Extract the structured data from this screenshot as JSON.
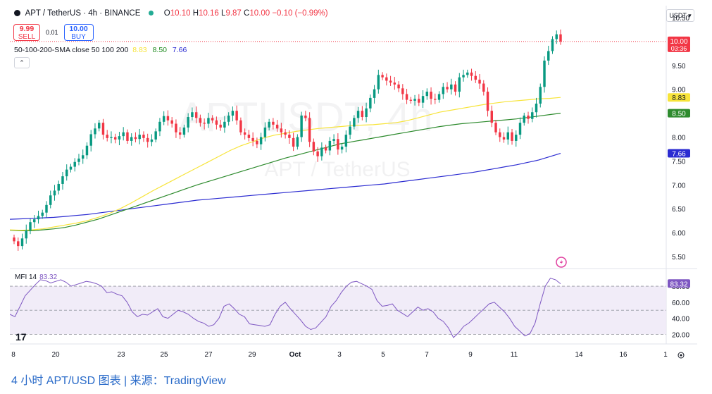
{
  "header": {
    "symbol": "APT / TetherUS · 4h · BINANCE",
    "ohlc": [
      {
        "label": "O",
        "value": "10.10"
      },
      {
        "label": "H",
        "value": "10.16"
      },
      {
        "label": "L",
        "value": "9.87"
      },
      {
        "label": "C",
        "value": "10.00"
      }
    ],
    "change": "−0.10 (−0.99%)",
    "sell_price": "9.99",
    "sell_label": "SELL",
    "spread": "0.01",
    "buy_price": "10.00",
    "buy_label": "BUY",
    "sma_label": "50-100-200-SMA close 50 100 200",
    "sma_values": [
      "8.83",
      "8.50",
      "7.66"
    ],
    "collapse_icon": "chevron-up-icon",
    "currency": "USDT ▾"
  },
  "watermark": {
    "main": "APTUSDT, 4h",
    "sub": "APT / TetherUS"
  },
  "mfi": {
    "label": "MFI 14",
    "value": "83.32"
  },
  "caption": "4 小时 APT/USD 图表 | 来源：TradingView",
  "tv_logo": "17",
  "colors": {
    "up": "#089981",
    "down": "#f23645",
    "sma50": "#f7e43a",
    "sma100": "#2e8b2e",
    "sma200": "#2b2bd1",
    "mfi": "#7e57c2",
    "mfi_band": "#ede7f6"
  },
  "chart_data": [
    {
      "type": "candlestick",
      "title": "APT / TetherUS · 4h · BINANCE",
      "y_ticks": [
        5.5,
        6.0,
        6.5,
        7.0,
        7.5,
        8.0,
        8.5,
        9.0,
        9.5,
        10.5
      ],
      "ylim": [
        5.25,
        10.75
      ],
      "x_ticks": [
        "8",
        "20",
        "23",
        "25",
        "27",
        "29",
        "Oct",
        "3",
        "5",
        "7",
        "9",
        "11",
        "14",
        "16",
        "1"
      ],
      "axis_price_labels": [
        {
          "text": "10.00",
          "sub": "03:36",
          "value": 10.0,
          "color": "#f23645"
        },
        {
          "text": "8.83",
          "value": 8.83,
          "color": "#f7e43a"
        },
        {
          "text": "8.50",
          "value": 8.5,
          "color": "#2e8b2e"
        },
        {
          "text": "7.66",
          "value": 7.66,
          "color": "#2b2bd1"
        }
      ],
      "close_series": [
        5.82,
        5.72,
        5.88,
        6.05,
        6.22,
        6.28,
        6.35,
        6.42,
        6.58,
        6.78,
        6.88,
        7.02,
        7.18,
        7.32,
        7.38,
        7.48,
        7.55,
        7.62,
        7.82,
        8.06,
        8.18,
        8.3,
        8.05,
        7.98,
        8.0,
        7.95,
        8.02,
        8.1,
        7.92,
        8.0,
        7.96,
        8.05,
        7.98,
        7.9,
        7.95,
        8.12,
        8.32,
        8.44,
        8.35,
        8.28,
        8.1,
        8.05,
        8.2,
        8.42,
        8.52,
        8.4,
        8.3,
        8.28,
        8.4,
        8.35,
        8.26,
        8.2,
        8.32,
        8.45,
        8.55,
        8.35,
        8.1,
        8.05,
        7.98,
        7.92,
        7.85,
        8.0,
        8.2,
        8.32,
        8.26,
        8.18,
        8.1,
        8.05,
        7.98,
        7.8,
        8.0,
        8.45,
        8.4,
        7.9,
        7.7,
        7.6,
        7.78,
        7.72,
        7.92,
        7.96,
        7.74,
        7.8,
        8.05,
        8.22,
        8.4,
        8.55,
        8.42,
        8.6,
        8.82,
        9.0,
        9.3,
        9.25,
        9.18,
        9.14,
        9.1,
        9.02,
        8.9,
        8.78,
        8.76,
        8.8,
        8.72,
        8.86,
        8.95,
        8.8,
        8.78,
        8.9,
        9.05,
        9.0,
        9.1,
        8.95,
        9.25,
        9.3,
        9.35,
        9.28,
        9.2,
        9.12,
        8.95,
        8.55,
        8.3,
        8.1,
        8.0,
        7.95,
        8.1,
        7.92,
        8.05,
        8.3,
        8.45,
        8.38,
        8.52,
        8.7,
        9.05,
        9.6,
        9.8,
        10.05,
        10.15,
        10.0
      ],
      "sma50_series": [
        6.06,
        6.05,
        6.06,
        6.08,
        6.12,
        6.16,
        6.2,
        6.25,
        6.32,
        6.4,
        6.5,
        6.62,
        6.75,
        6.88,
        7.0,
        7.12,
        7.24,
        7.36,
        7.48,
        7.6,
        7.72,
        7.82,
        7.9,
        7.98,
        8.04,
        8.08,
        8.12,
        8.15,
        8.18,
        8.2,
        8.22,
        8.24,
        8.25,
        8.26,
        8.28,
        8.3,
        8.34,
        8.4,
        8.46,
        8.52,
        8.56,
        8.6,
        8.64,
        8.68,
        8.71,
        8.74,
        8.76,
        8.78,
        8.8,
        8.81,
        8.83
      ],
      "sma100_series": [
        6.05,
        6.04,
        6.04,
        6.06,
        6.08,
        6.11,
        6.16,
        6.22,
        6.28,
        6.36,
        6.44,
        6.52,
        6.6,
        6.68,
        6.76,
        6.84,
        6.92,
        7.0,
        7.07,
        7.14,
        7.21,
        7.28,
        7.35,
        7.42,
        7.49,
        7.56,
        7.62,
        7.68,
        7.74,
        7.8,
        7.86,
        7.9,
        7.94,
        7.98,
        8.02,
        8.06,
        8.1,
        8.14,
        8.18,
        8.22,
        8.25,
        8.28,
        8.3,
        8.32,
        8.34,
        8.36,
        8.38,
        8.41,
        8.44,
        8.47,
        8.5
      ],
      "sma200_series": [
        6.28,
        6.29,
        6.3,
        6.31,
        6.32,
        6.34,
        6.36,
        6.38,
        6.41,
        6.44,
        6.47,
        6.5,
        6.53,
        6.56,
        6.59,
        6.62,
        6.65,
        6.68,
        6.7,
        6.72,
        6.74,
        6.76,
        6.78,
        6.8,
        6.82,
        6.84,
        6.86,
        6.88,
        6.9,
        6.92,
        6.94,
        6.96,
        6.98,
        7.0,
        7.02,
        7.05,
        7.08,
        7.11,
        7.14,
        7.17,
        7.2,
        7.23,
        7.26,
        7.3,
        7.34,
        7.38,
        7.42,
        7.47,
        7.52,
        7.59,
        7.66
      ]
    },
    {
      "type": "line",
      "title": "MFI 14",
      "y_ticks": [
        20.0,
        40.0,
        60.0,
        80.0
      ],
      "ylim": [
        8,
        102
      ],
      "band": [
        20,
        80
      ],
      "values": [
        45,
        42,
        55,
        68,
        75,
        82,
        88,
        87,
        84,
        86,
        88,
        85,
        80,
        82,
        84,
        86,
        85,
        83,
        80,
        72,
        73,
        70,
        68,
        60,
        48,
        42,
        45,
        44,
        48,
        52,
        42,
        40,
        45,
        50,
        48,
        45,
        40,
        36,
        34,
        30,
        32,
        40,
        55,
        58,
        52,
        45,
        42,
        33,
        32,
        31,
        30,
        32,
        45,
        55,
        60,
        52,
        45,
        38,
        30,
        26,
        28,
        35,
        42,
        55,
        62,
        72,
        80,
        85,
        86,
        83,
        80,
        76,
        62,
        55,
        56,
        58,
        50,
        46,
        42,
        48,
        54,
        50,
        52,
        48,
        40,
        36,
        28,
        16,
        22,
        30,
        34,
        40,
        46,
        52,
        58,
        60,
        54,
        48,
        40,
        30,
        24,
        18,
        21,
        34,
        58,
        80,
        90,
        88,
        83
      ]
    }
  ]
}
